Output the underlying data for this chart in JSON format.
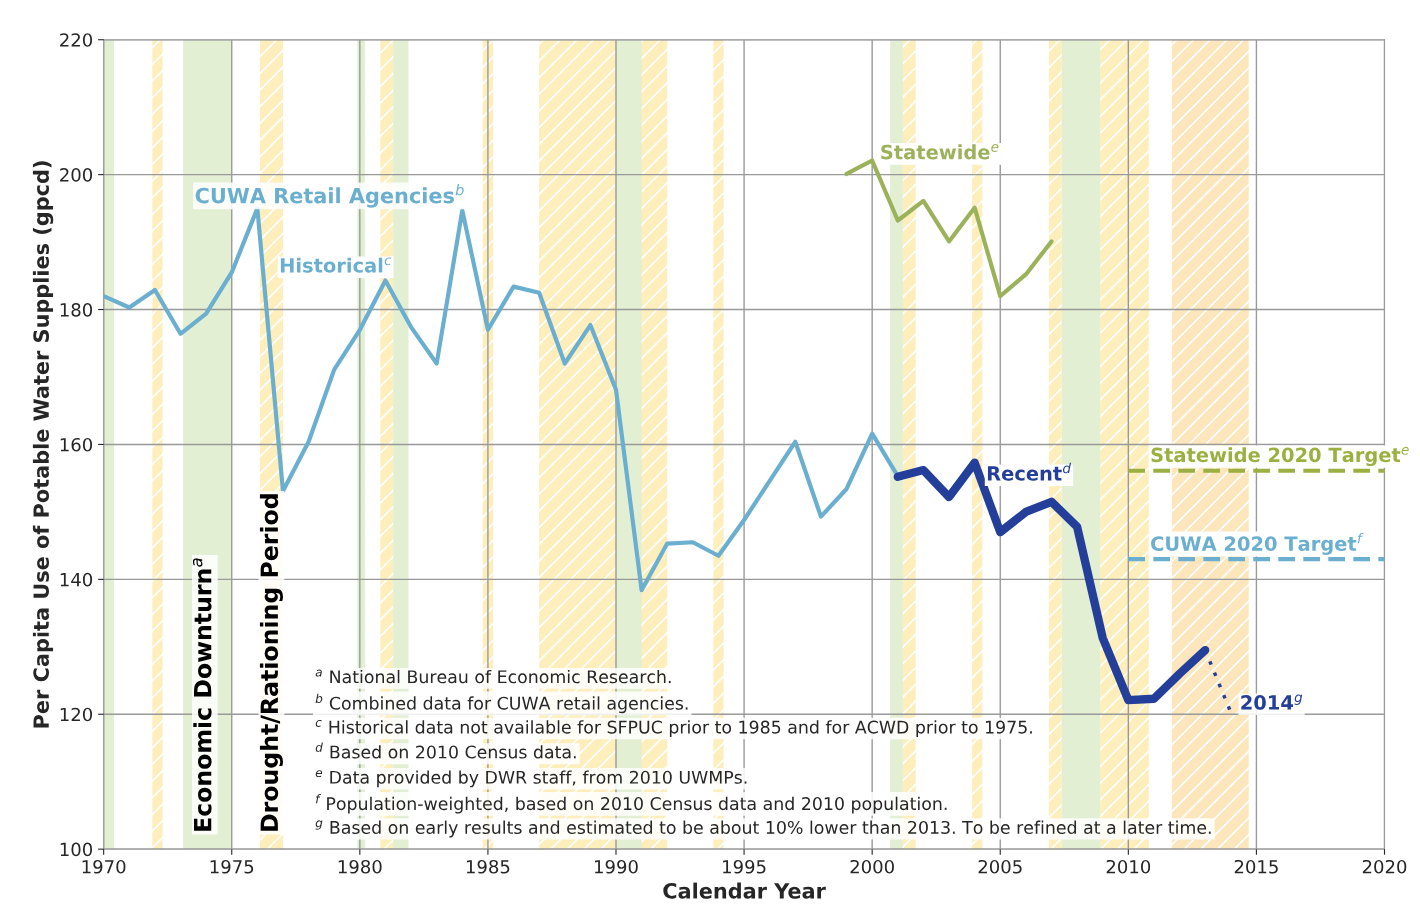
{
  "chart_data": {
    "type": "line",
    "xlabel": "Calendar Year",
    "ylabel": "Per Capita Use of Potable Water Supplies (gpcd)",
    "xlim": [
      1970,
      2020
    ],
    "xticks": [
      1970,
      1975,
      1980,
      1985,
      1990,
      1995,
      2000,
      2005,
      2010,
      2015,
      2020
    ],
    "ylim": [
      100,
      220
    ],
    "yticks": [
      100,
      120,
      140,
      160,
      180,
      200,
      220
    ],
    "grid": true,
    "legend": false,
    "marker": "none",
    "series": [
      {
        "name": "Historical$^{c}$",
        "color": "#6aaed0",
        "x": [
          1970,
          1971,
          1972,
          1973,
          1974,
          1975,
          1976,
          1977,
          1978,
          1979,
          1980,
          1981,
          1982,
          1983,
          1984,
          1985,
          1986,
          1987,
          1988,
          1989,
          1990,
          1991,
          1992,
          1993,
          1994,
          1995,
          1996,
          1997,
          1998,
          1999,
          2000,
          2001
        ],
        "values": [
          182.0,
          180.3,
          182.9,
          176.4,
          179.4,
          185.5,
          195.0,
          153.1,
          160.4,
          171.1,
          177.0,
          184.3,
          177.4,
          172.0,
          194.7,
          177.0,
          183.4,
          182.5,
          172.0,
          177.7,
          168.1,
          138.4,
          145.3,
          145.5,
          143.5,
          148.8,
          154.6,
          160.4,
          149.3,
          153.4,
          161.6,
          155.3
        ]
      },
      {
        "name": "Recent$^{d}$",
        "color": "#243f99",
        "x": [
          2001,
          2002,
          2003,
          2004,
          2005,
          2006,
          2007,
          2008,
          2009,
          2010,
          2011,
          2012,
          2013
        ],
        "values": [
          155.2,
          156.2,
          152.2,
          157.3,
          147.0,
          150.0,
          151.5,
          147.8,
          131.3,
          122.1,
          122.3,
          126.0,
          129.5
        ]
      },
      {
        "color": "#243f99",
        "line_style": "dotted",
        "x": [
          2013,
          2014
        ],
        "values": [
          129.5,
          120.3
        ]
      },
      {
        "name": "Statewide$^{e}$",
        "color": "#9bb25a",
        "x": [
          1999,
          2000,
          2001,
          2002,
          2003,
          2004,
          2005,
          2006,
          2007
        ],
        "values": [
          200.1,
          202.1,
          193.2,
          196.1,
          190.1,
          195.1,
          182.0,
          185.2,
          190.1
        ]
      },
      {
        "name": "Statewide 2020 Target$^{e}$",
        "color": "#9bb040",
        "line_style": "dashed",
        "x": [
          2010,
          2020
        ],
        "values": [
          156.1,
          156.1
        ]
      },
      {
        "name": "CUWA 2020 Target$^{f}$",
        "color": "#6aaed0",
        "line_style": "dashed",
        "x": [
          2010,
          2020
        ],
        "values": [
          143.0,
          143.0
        ]
      }
    ],
    "bands": [
      {
        "axis": "x",
        "from": 1970,
        "to": 1970.4,
        "color": "#e3efd3"
      },
      {
        "axis": "x",
        "from": 1973.1,
        "to": 1975,
        "color": "#e3efd3"
      },
      {
        "axis": "x",
        "from": 1979.9,
        "to": 1980.2,
        "color": "#e3efd3"
      },
      {
        "axis": "x",
        "from": 1981.3,
        "to": 1981.9,
        "color": "#e3efd3"
      },
      {
        "axis": "x",
        "from": 1990,
        "to": 1991,
        "color": "#e3efd3"
      },
      {
        "axis": "x",
        "from": 2000.7,
        "to": 2001.2,
        "color": "#e3efd3"
      },
      {
        "axis": "x",
        "from": 2007.4,
        "to": 2008.9,
        "color": "#e3efd3"
      },
      {
        "axis": "x",
        "from": 1971.9,
        "to": 1972.3,
        "color": "#fdeebb"
      },
      {
        "axis": "x",
        "from": 1976.1,
        "to": 1977.0,
        "color": "#fdeebb"
      },
      {
        "axis": "x",
        "from": 1980.8,
        "to": 1981.3,
        "color": "#fdeebb"
      },
      {
        "axis": "x",
        "from": 1984.8,
        "to": 1985.2,
        "color": "#fdeebb"
      },
      {
        "axis": "x",
        "from": 1987.0,
        "to": 1992.0,
        "color": "#fdeebb"
      },
      {
        "axis": "x",
        "from": 1993.8,
        "to": 1994.2,
        "color": "#fdeebb"
      },
      {
        "axis": "x",
        "from": 2001.2,
        "to": 2001.7,
        "color": "#fdeebb"
      },
      {
        "axis": "x",
        "from": 2003.9,
        "to": 2004.3,
        "color": "#fdeebb"
      },
      {
        "axis": "x",
        "from": 2006.9,
        "to": 2007.4,
        "color": "#fdeebb"
      },
      {
        "axis": "x",
        "from": 2008.9,
        "to": 2010.8,
        "color": "#fdeebb"
      },
      {
        "axis": "x",
        "from": 2011.7,
        "to": 2014.7,
        "color": "#fde6bb"
      }
    ],
    "annotations": [
      "CUWA Retail Agencies$^{b}$",
      "Economic Downturn$^{a}$",
      "Drought/Rationing Period",
      "2014$^{g}$",
      "$^{a}$ National Bureau of Economic Research.",
      "$^{b}$ Combined data for CUWA retail agencies.",
      "$^{c}$ Historical data not available for SFPUC prior to 1985 and for ACWD prior to 1975.",
      "$^{d}$ Based on 2010 Census data.",
      "$^{e}$ Data provided by DWR staff, from 2010 UWMPs.",
      "$^{f}$ Population-weighted, based on 2010 Census data and 2010 population.",
      "$^{g}$ Based on early results and estimated to be about 10% lower than 2013. To be refined at a later time."
    ]
  }
}
